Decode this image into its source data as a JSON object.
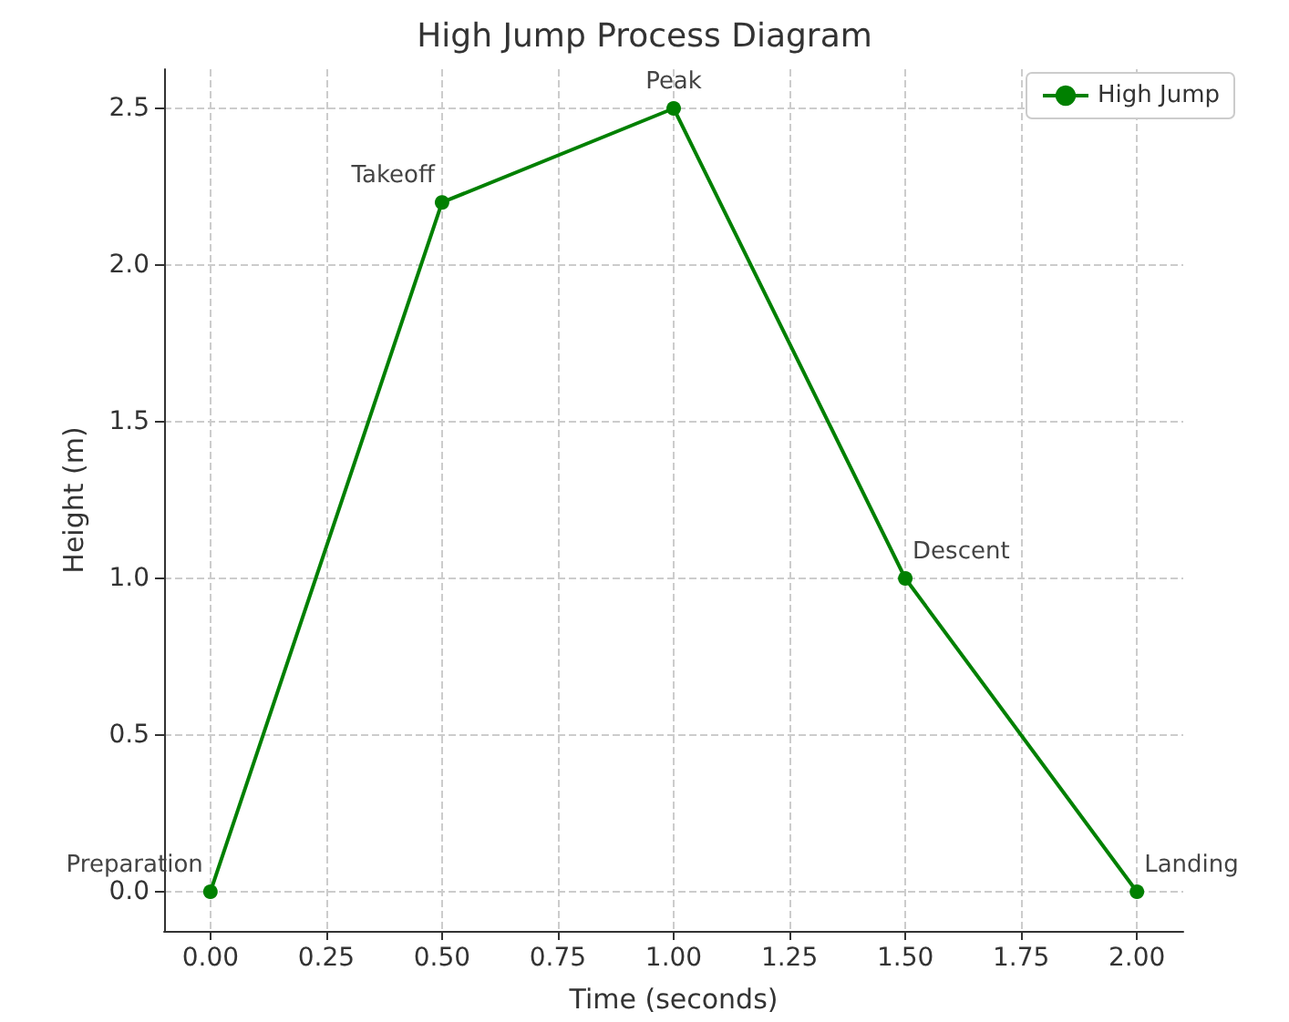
{
  "chart_data": {
    "type": "line",
    "title": "High Jump Process Diagram",
    "xlabel": "Time (seconds)",
    "ylabel": "Height (m)",
    "x": [
      0,
      0.5,
      1,
      1.5,
      2
    ],
    "series": [
      {
        "name": "High Jump",
        "color": "#008000",
        "values": [
          0,
          2.2,
          2.5,
          1.0,
          0
        ]
      }
    ],
    "xlim": [
      -0.1,
      2.1
    ],
    "xticks": [
      {
        "value": 0,
        "label": "0.00"
      },
      {
        "value": 0.25,
        "label": "0.25"
      },
      {
        "value": 0.5,
        "label": "0.50"
      },
      {
        "value": 0.75,
        "label": "0.75"
      },
      {
        "value": 1,
        "label": "1.00"
      },
      {
        "value": 1.25,
        "label": "1.25"
      },
      {
        "value": 1.5,
        "label": "1.50"
      },
      {
        "value": 1.75,
        "label": "1.75"
      },
      {
        "value": 2,
        "label": "2.00"
      }
    ],
    "ylim": [
      -0.125,
      2.625
    ],
    "yticks": [
      {
        "value": 0,
        "label": "0.0"
      },
      {
        "value": 0.5,
        "label": "0.5"
      },
      {
        "value": 1,
        "label": "1.0"
      },
      {
        "value": 1.5,
        "label": "1.5"
      },
      {
        "value": 2,
        "label": "2.0"
      },
      {
        "value": 2.5,
        "label": "2.5"
      }
    ],
    "annotations": [
      {
        "text": "Preparation",
        "x": 0,
        "y": 0
      },
      {
        "text": "Takeoff",
        "x": 0.5,
        "y": 2.2
      },
      {
        "text": "Peak",
        "x": 1,
        "y": 2.5
      },
      {
        "text": "Descent",
        "x": 1.5,
        "y": 1.0
      },
      {
        "text": "Landing",
        "x": 2,
        "y": 0
      }
    ],
    "grid": true,
    "legend": "top right",
    "marker": "circle",
    "line_style": "solid"
  }
}
